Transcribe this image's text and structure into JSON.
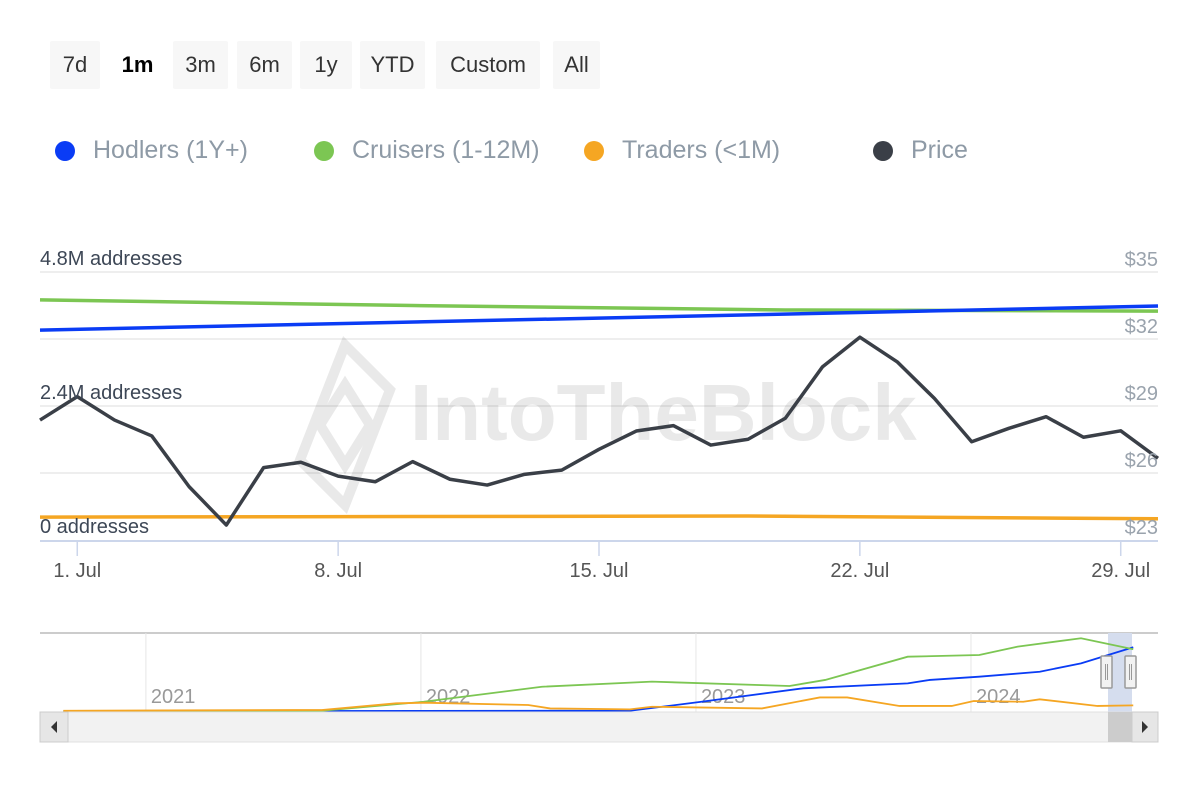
{
  "range_buttons": [
    {
      "label": "7d"
    },
    {
      "label": "1m",
      "active": true
    },
    {
      "label": "3m"
    },
    {
      "label": "6m"
    },
    {
      "label": "1y"
    },
    {
      "label": "YTD"
    },
    {
      "label": "Custom"
    },
    {
      "label": "All"
    }
  ],
  "watermark": "IntoTheBlock",
  "chart_data": {
    "type": "line",
    "legend_position": "top-left",
    "legend": [
      {
        "name": "Hodlers (1Y+)",
        "color": "#0a3cf5"
      },
      {
        "name": "Cruisers (1-12M)",
        "color": "#7cc653"
      },
      {
        "name": "Traders (<1M)",
        "color": "#f5a623"
      },
      {
        "name": "Price",
        "color": "#3a3f47"
      }
    ],
    "x_ticks": [
      "1. Jul",
      "8. Jul",
      "15. Jul",
      "22. Jul",
      "29. Jul"
    ],
    "x_tick_days": [
      1,
      8,
      15,
      22,
      29
    ],
    "x_range_days": [
      0,
      30
    ],
    "y_left": {
      "ticks": [
        "0 addresses",
        "2.4M addresses",
        "4.8M addresses"
      ],
      "range": [
        0,
        4.8
      ]
    },
    "y_right": {
      "ticks": [
        "$23",
        "$26",
        "$29",
        "$32",
        "$35"
      ],
      "range": [
        23,
        35
      ]
    },
    "series": [
      {
        "name": "Hodlers (1Y+)",
        "axis": "left",
        "days": [
          0,
          30
        ],
        "values": [
          3.76,
          4.19
        ]
      },
      {
        "name": "Cruisers (1-12M)",
        "axis": "left",
        "days": [
          0,
          10,
          20,
          30
        ],
        "values": [
          4.3,
          4.2,
          4.12,
          4.1
        ]
      },
      {
        "name": "Traders (<1M)",
        "axis": "left",
        "days": [
          0,
          10,
          19,
          30
        ],
        "values": [
          0.41,
          0.42,
          0.43,
          0.38
        ]
      },
      {
        "name": "Price",
        "axis": "right",
        "days": [
          0,
          1,
          2,
          3,
          4,
          5,
          6,
          7,
          8,
          9,
          10,
          11,
          12,
          13,
          14,
          15,
          16,
          17,
          18,
          19,
          20,
          21,
          22,
          23,
          24,
          25,
          26,
          27,
          28,
          29,
          30
        ],
        "values": [
          28.37,
          29.42,
          28.37,
          27.66,
          25.39,
          23.67,
          26.24,
          26.48,
          25.86,
          25.61,
          26.51,
          25.72,
          25.46,
          25.94,
          26.13,
          27.06,
          27.88,
          28.12,
          27.25,
          27.51,
          28.45,
          30.76,
          32.08,
          30.98,
          29.34,
          27.4,
          28.0,
          28.52,
          27.6,
          27.89,
          26.66
        ]
      }
    ],
    "navigator": {
      "x_ticks": [
        "2021",
        "2022",
        "2023",
        "2024"
      ],
      "x_range_years": [
        2020.615,
        2024.68
      ],
      "y_range": [
        0,
        5.1
      ],
      "selected_range": "last 1 month",
      "series": [
        {
          "name": "Hodlers (1Y+)",
          "x": [
            2020.7,
            2022.76,
            2023.02,
            2023.39,
            2023.77,
            2023.85,
            2024.03,
            2024.25,
            2024.4,
            2024.59
          ],
          "values": [
            0.05,
            0.08,
            0.66,
            1.53,
            1.85,
            2.07,
            2.28,
            2.6,
            3.14,
            4.18
          ]
        },
        {
          "name": "Cruisers (1-12M)",
          "x": [
            2020.7,
            2021.64,
            2022.01,
            2022.44,
            2022.84,
            2023.34,
            2023.47,
            2023.77,
            2024.03,
            2024.17,
            2024.4,
            2024.59
          ],
          "values": [
            0.05,
            0.08,
            0.66,
            1.63,
            1.96,
            1.68,
            2.07,
            3.57,
            3.68,
            4.22,
            4.76,
            4.05
          ]
        },
        {
          "name": "Traders (<1M)",
          "x": [
            2020.7,
            2021.64,
            2021.91,
            2022.01,
            2022.39,
            2022.47,
            2022.76,
            2022.84,
            2023.24,
            2023.45,
            2023.55,
            2023.74,
            2023.93,
            2024.01,
            2024.19,
            2024.25,
            2024.46,
            2024.59
          ],
          "values": [
            0.08,
            0.13,
            0.56,
            0.6,
            0.45,
            0.23,
            0.17,
            0.34,
            0.23,
            0.94,
            0.94,
            0.39,
            0.39,
            0.71,
            0.66,
            0.82,
            0.39,
            0.43
          ]
        }
      ]
    }
  }
}
